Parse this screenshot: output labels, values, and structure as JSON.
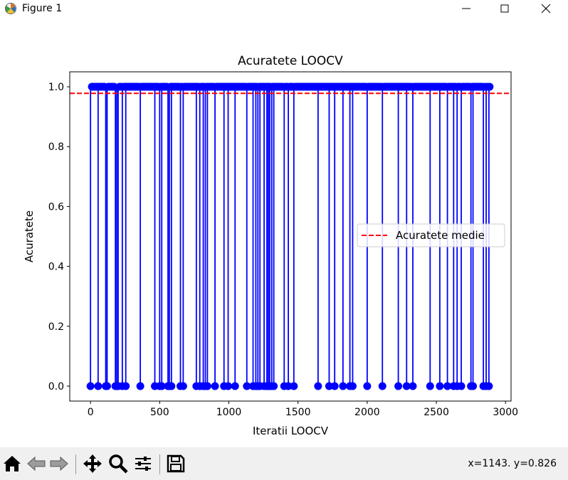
{
  "window": {
    "title": "Figure 1"
  },
  "toolbar": {
    "buttons": [
      "home-icon",
      "back-icon",
      "forward-icon",
      "pan-icon",
      "zoom-icon",
      "configure-subplots-icon",
      "save-icon"
    ],
    "coords_text": "x=1143. y=0.826"
  },
  "colors": {
    "series": "#0000ff",
    "mean_line": "#ff0000"
  },
  "chart_data": {
    "type": "stem",
    "title": "Acuratete LOOCV",
    "xlabel": "Iteratii LOOCV",
    "ylabel": "Acuratete",
    "xlim": [
      -150,
      3040
    ],
    "ylim": [
      -0.05,
      1.05
    ],
    "xticks": [
      "0",
      "500",
      "1000",
      "1500",
      "2000",
      "2500",
      "3000"
    ],
    "xtick_values": [
      0,
      500,
      1000,
      1500,
      2000,
      2500,
      3000
    ],
    "yticks": [
      "0.0",
      "0.2",
      "0.4",
      "0.6",
      "0.8",
      "1.0"
    ],
    "ytick_values": [
      0.0,
      0.2,
      0.4,
      0.6,
      0.8,
      1.0
    ],
    "n_iterations": 2885,
    "default_value": 1.0,
    "zero_iterations": [
      0,
      55,
      110,
      120,
      180,
      190,
      200,
      230,
      255,
      360,
      465,
      500,
      515,
      560,
      570,
      585,
      650,
      670,
      765,
      790,
      815,
      830,
      845,
      900,
      965,
      995,
      1045,
      1130,
      1175,
      1195,
      1210,
      1225,
      1255,
      1275,
      1285,
      1295,
      1310,
      1325,
      1400,
      1430,
      1470,
      1645,
      1725,
      1765,
      1825,
      1875,
      1895,
      2000,
      2110,
      2225,
      2285,
      2330,
      2455,
      2525,
      2580,
      2625,
      2650,
      2680,
      2750,
      2765,
      2840,
      2860,
      2880
    ],
    "series": [
      {
        "name": "",
        "marker": "o",
        "style": "stem"
      }
    ],
    "mean_line": {
      "name": "Acuratete medie",
      "y": 0.978,
      "style": "dashed"
    },
    "legend": {
      "entries": [
        "Acuratete medie"
      ],
      "position": "center-right"
    }
  }
}
